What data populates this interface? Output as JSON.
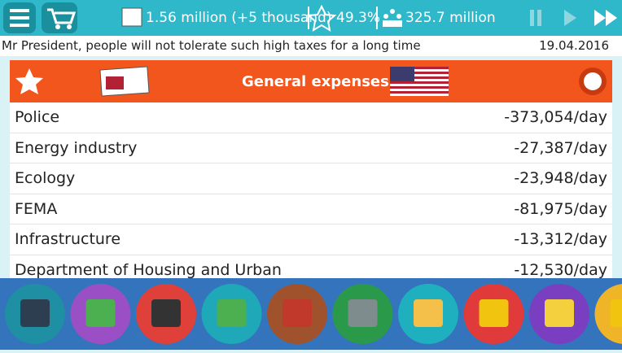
{
  "header": {
    "budget": "1.56 million (+5 thousand)",
    "approval": "49.3%",
    "population": "325.7 million"
  },
  "ticker": {
    "message": "Mr President, people will not tolerate such high taxes for a long time",
    "date": "19.04.2016"
  },
  "panel": {
    "title": "General expenses",
    "rows": [
      [
        "Police",
        "-373,054/day"
      ],
      [
        "Energy industry",
        "-27,387/day"
      ],
      [
        "Ecology",
        "-23,948/day"
      ],
      [
        "FEMA",
        "-81,975/day"
      ],
      [
        "Infrastructure",
        "-13,312/day"
      ],
      [
        "Department of Housing and Urban",
        "-12,530/day"
      ]
    ]
  }
}
